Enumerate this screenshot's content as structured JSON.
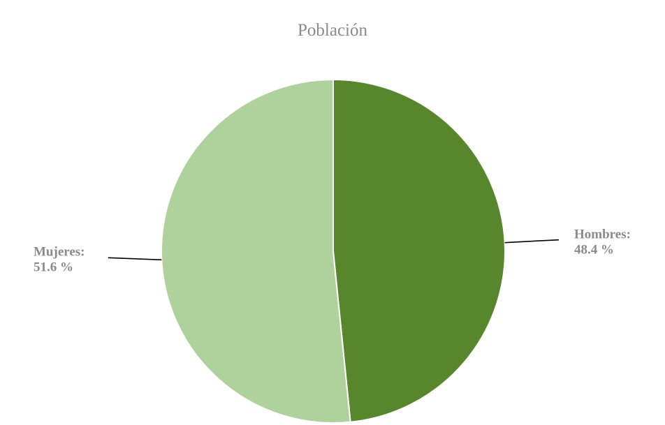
{
  "chart_data": {
    "type": "pie",
    "title": "Población",
    "slices": [
      {
        "label": "Hombres:",
        "value": 48.4,
        "value_text": "48.4 %",
        "color": "#58862c"
      },
      {
        "label": "Mujeres:",
        "value": 51.6,
        "value_text": "51.6 %",
        "color": "#afd29c"
      }
    ],
    "start_angle_deg": 0,
    "direction": "clockwise",
    "legend": "none",
    "border_color": "#ffffff"
  }
}
